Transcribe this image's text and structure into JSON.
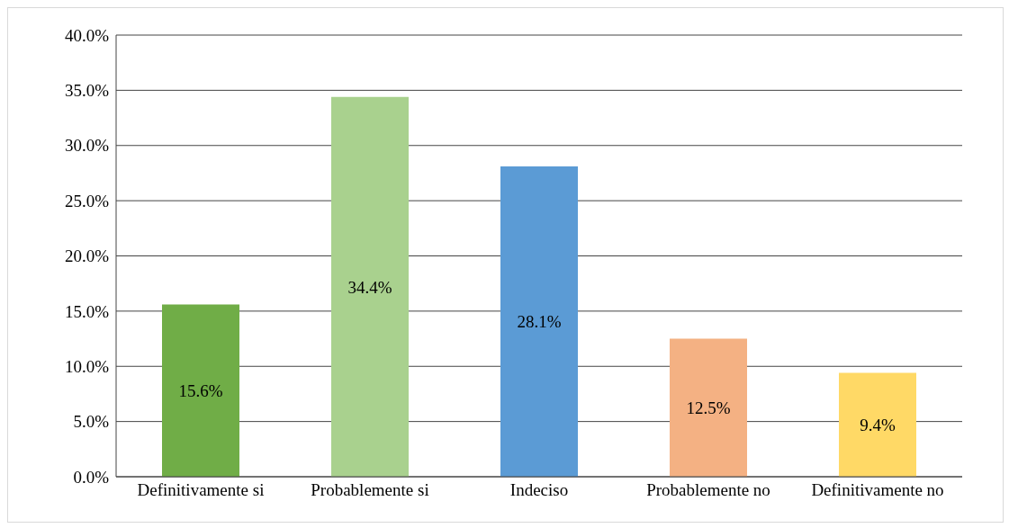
{
  "chart_data": {
    "type": "bar",
    "categories": [
      "Definitivamente si",
      "Probablemente si",
      "Indeciso",
      "Probablemente no",
      "Definitivamente no"
    ],
    "values": [
      15.6,
      34.4,
      28.1,
      12.5,
      9.4
    ],
    "colors": [
      "#70ad47",
      "#a9d18e",
      "#5b9bd5",
      "#f4b183",
      "#ffd966"
    ],
    "value_labels": [
      "15.6%",
      "34.4%",
      "28.1%",
      "12.5%",
      "9.4%"
    ],
    "ylim": [
      0,
      40
    ],
    "yticks": [
      {
        "value": 0,
        "label": "0.0%"
      },
      {
        "value": 5,
        "label": "5.0%"
      },
      {
        "value": 10,
        "label": "10.0%"
      },
      {
        "value": 15,
        "label": "15.0%"
      },
      {
        "value": 20,
        "label": "20.0%"
      },
      {
        "value": 25,
        "label": "25.0%"
      },
      {
        "value": 30,
        "label": "30.0%"
      },
      {
        "value": 35,
        "label": "35.0%"
      },
      {
        "value": 40,
        "label": "40.0%"
      }
    ],
    "grid": "y"
  }
}
